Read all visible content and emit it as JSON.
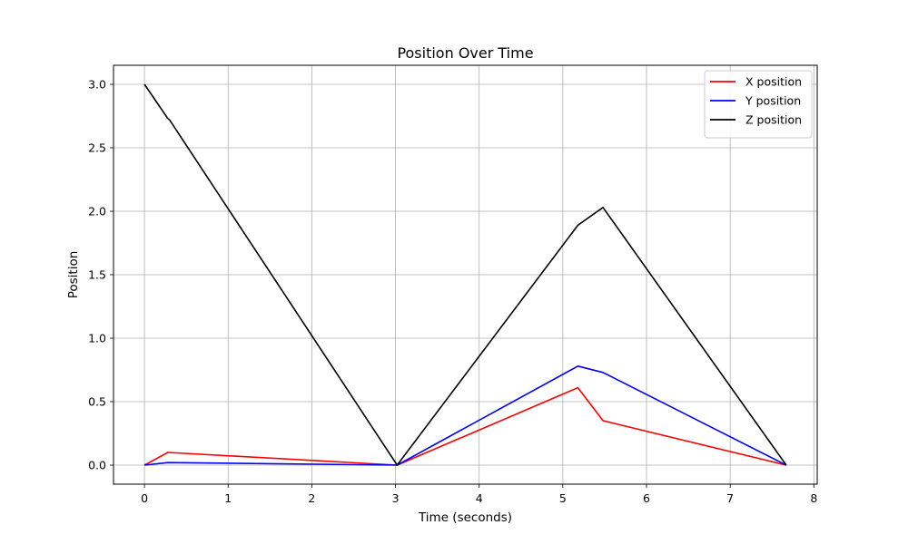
{
  "chart_data": {
    "type": "line",
    "title": "Position Over Time",
    "xlabel": "Time (seconds)",
    "ylabel": "Position",
    "xlim": [
      -0.37,
      8.04
    ],
    "ylim": [
      -0.15,
      3.15
    ],
    "xticks": [
      0,
      1,
      2,
      3,
      4,
      5,
      6,
      7,
      8
    ],
    "yticks": [
      0.0,
      0.5,
      1.0,
      1.5,
      2.0,
      2.5,
      3.0
    ],
    "xtick_labels": [
      "0",
      "1",
      "2",
      "3",
      "4",
      "5",
      "6",
      "7",
      "8"
    ],
    "ytick_labels": [
      "0.0",
      "0.5",
      "1.0",
      "1.5",
      "2.0",
      "2.5",
      "3.0"
    ],
    "grid": true,
    "legend_position": "top-right",
    "series": [
      {
        "name": "X position",
        "color": "#ff0000",
        "x": [
          0,
          0.28,
          3.02,
          5.18,
          5.48,
          7.67
        ],
        "y": [
          0,
          0.1,
          0,
          0.61,
          0.35,
          0
        ]
      },
      {
        "name": "Y position",
        "color": "#0000ff",
        "x": [
          0,
          0.28,
          3.02,
          5.18,
          5.48,
          7.67
        ],
        "y": [
          0,
          0.02,
          0,
          0.78,
          0.73,
          0
        ]
      },
      {
        "name": "Z position",
        "color": "#000000",
        "x": [
          0,
          0.28,
          0.3,
          3.02,
          5.18,
          5.48,
          7.67
        ],
        "y": [
          3.0,
          2.73,
          2.72,
          0,
          1.89,
          2.03,
          0
        ]
      }
    ]
  }
}
